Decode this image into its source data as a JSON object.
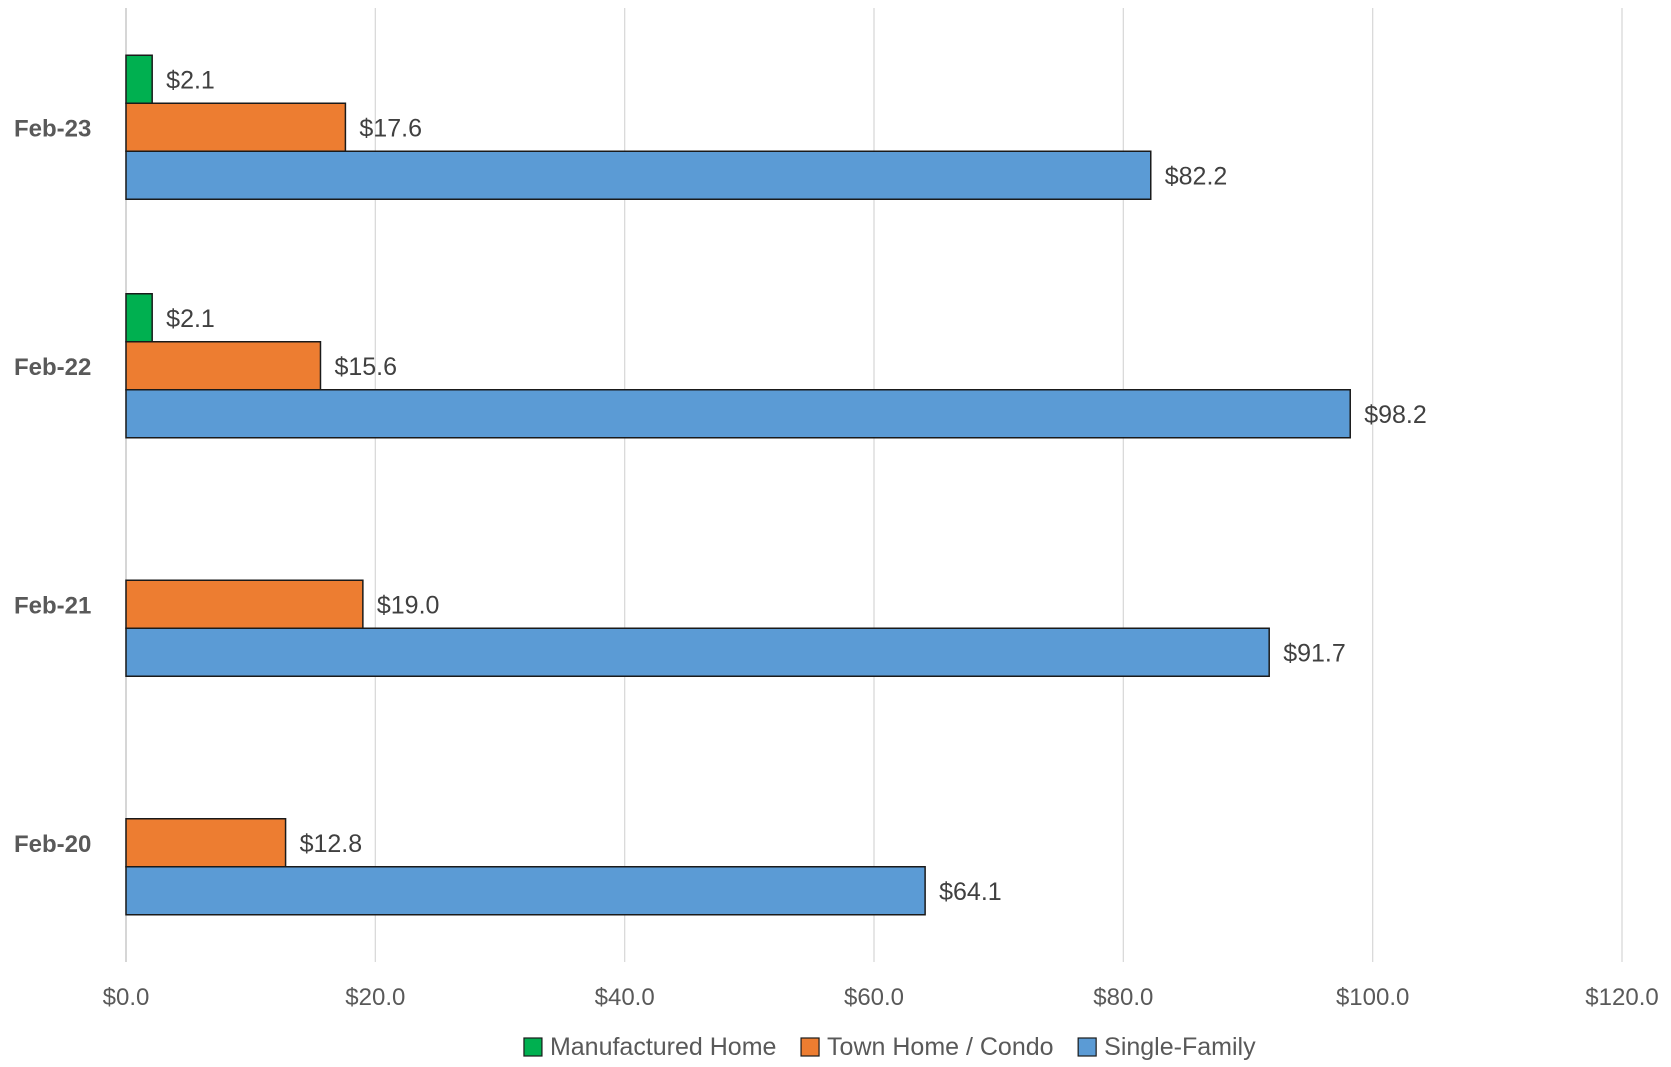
{
  "chart_data": {
    "type": "bar",
    "orientation": "horizontal",
    "categories": [
      "Feb-20",
      "Feb-21",
      "Feb-22",
      "Feb-23"
    ],
    "series": [
      {
        "name": "Manufactured Home",
        "color": "#00B050",
        "values": [
          null,
          null,
          2.1,
          2.1
        ]
      },
      {
        "name": "Town Home / Condo",
        "color": "#ED7D31",
        "values": [
          12.8,
          19.0,
          15.6,
          17.6
        ]
      },
      {
        "name": "Single-Family",
        "color": "#5B9BD5",
        "values": [
          64.1,
          91.7,
          98.2,
          82.2
        ]
      }
    ],
    "data_labels": {
      "Manufactured Home": [
        "",
        "",
        "$2.1",
        "$2.1"
      ],
      "Town Home / Condo": [
        "$12.8",
        "$19.0",
        "$15.6",
        "$17.6"
      ],
      "Single-Family": [
        "$64.1",
        "$91.7",
        "$98.2",
        "$82.2"
      ]
    },
    "x_ticks": [
      "$0.0",
      "$20.0",
      "$40.0",
      "$60.0",
      "$80.0",
      "$100.0",
      "$120.0"
    ],
    "xlim": [
      0,
      120
    ],
    "x_tick_step": 20,
    "grid": true,
    "legend_position": "bottom",
    "category_order": "bottom-to-top"
  }
}
